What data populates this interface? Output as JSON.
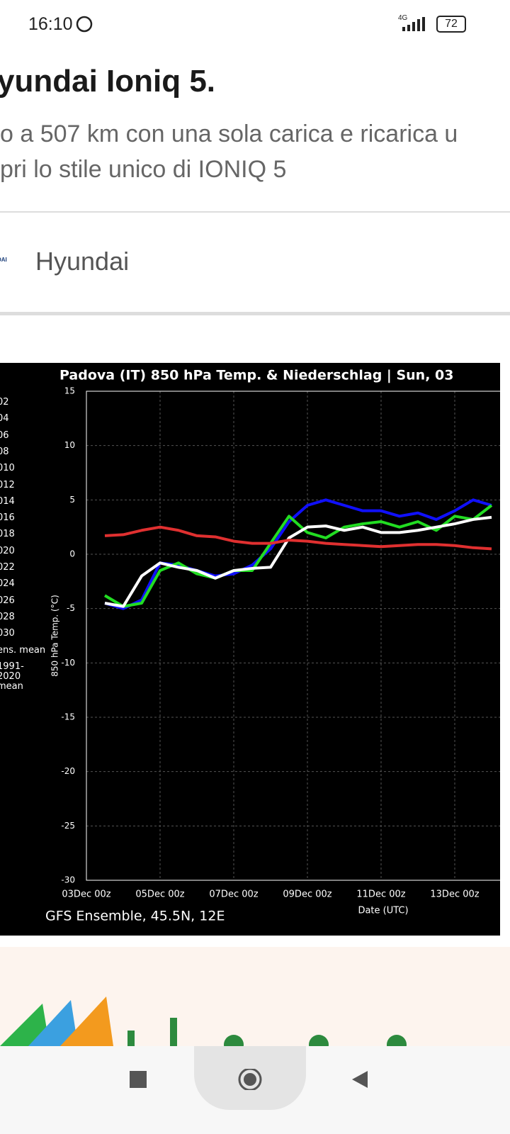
{
  "status_bar": {
    "time": "16:10",
    "network": "4G",
    "battery": "72"
  },
  "article": {
    "title": "yundai Ioniq 5.",
    "lines": [
      "o a 507 km con una sola carica e ricarica u",
      "pri lo stile unico di IONIQ 5"
    ],
    "brand_logo": "DAI",
    "brand": "Hyundai"
  },
  "chart_data": {
    "type": "line",
    "title": "Padova  (IT)  850 hPa Temp. & Niederschlag | Sun, 03",
    "ylabel": "850 hPa Temp. (°C)",
    "xlabel": "Date (UTC)",
    "footer": "GFS Ensemble, 45.5N, 12E",
    "categories": [
      "03Dec 00z",
      null,
      null,
      null,
      "05Dec 00z",
      null,
      null,
      null,
      "07Dec 00z",
      null,
      null,
      null,
      "09Dec 00z",
      null,
      null,
      null,
      "11Dec 00z",
      null,
      null,
      null,
      "13Dec 00z",
      null,
      null
    ],
    "ylim": [
      -30,
      15
    ],
    "yticks": [
      -30,
      -25,
      -20,
      -15,
      -10,
      -5,
      0,
      5,
      10,
      15
    ],
    "grid": true,
    "legend_extra": [
      "06",
      "08",
      "010",
      "012",
      "014",
      "016",
      "018",
      "020",
      "022",
      "024",
      "026",
      "028",
      "030"
    ],
    "series": [
      {
        "name": "02",
        "color": "#1010ff",
        "values": [
          null,
          -4.5,
          -5,
          -4.2,
          -0.8,
          -1,
          -1.5,
          -2,
          -1.8,
          -1,
          0.5,
          3,
          4.5,
          5,
          4.5,
          4,
          4,
          3.5,
          3.8,
          3.2,
          4,
          5,
          4.5
        ]
      },
      {
        "name": "04",
        "color": "#22dd22",
        "values": [
          null,
          -3.8,
          -4.8,
          -4.5,
          -1.5,
          -0.8,
          -1.8,
          -2.2,
          -1.5,
          -1.5,
          1,
          3.5,
          2,
          1.5,
          2.5,
          2.8,
          3,
          2.5,
          3,
          2.2,
          3.5,
          3.2,
          4.5
        ]
      },
      {
        "name": "ens. mean",
        "color": "#ffffff",
        "values": [
          null,
          -4.5,
          -4.8,
          -2,
          -0.8,
          -1.2,
          -1.5,
          -2.2,
          -1.5,
          -1.3,
          -1.2,
          1.5,
          2.5,
          2.6,
          2.2,
          2.5,
          2,
          2,
          2.2,
          2.5,
          2.8,
          3.2,
          3.4
        ]
      },
      {
        "name": "1991-2020 mean",
        "color": "#e03030",
        "values": [
          null,
          1.7,
          1.8,
          2.2,
          2.5,
          2.2,
          1.7,
          1.6,
          1.2,
          1,
          1,
          1.3,
          1.2,
          1,
          0.9,
          0.8,
          0.7,
          0.8,
          0.9,
          0.9,
          0.8,
          0.6,
          0.5
        ]
      }
    ]
  }
}
